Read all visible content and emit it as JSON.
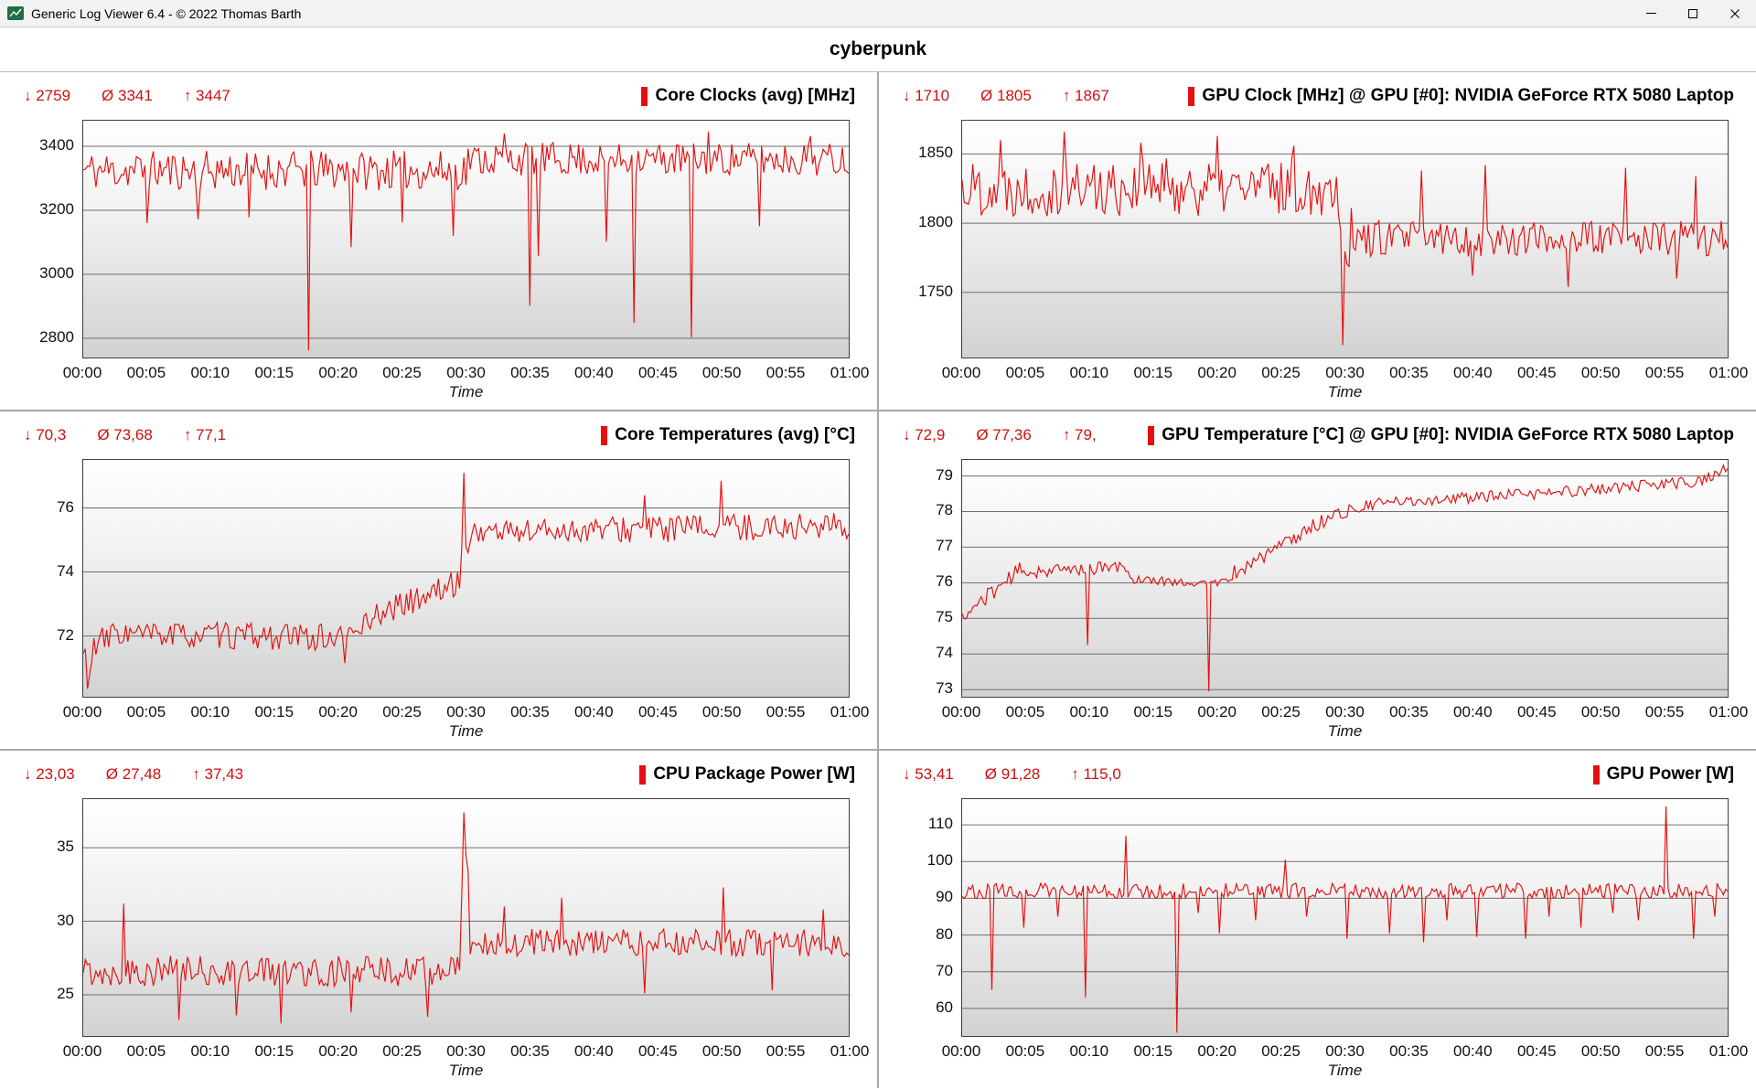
{
  "window": {
    "title": "Generic Log Viewer 6.4 - © 2022 Thomas Barth",
    "controls": [
      "minimize",
      "maximize",
      "close"
    ]
  },
  "header": {
    "title": "cyberpunk"
  },
  "chart_data": [
    {
      "type": "line",
      "title": "Core Clocks (avg) [MHz]",
      "stats": {
        "min": "↓ 2759",
        "avg": "Ø 3341",
        "max": "↑ 3447"
      },
      "color": "#e60f0f",
      "xlabel": "Time",
      "x_ticks": [
        "00:00",
        "00:05",
        "00:10",
        "00:15",
        "00:20",
        "00:25",
        "00:30",
        "00:35",
        "00:40",
        "00:45",
        "00:50",
        "00:55",
        "01:00"
      ],
      "y_ticks": [
        2800,
        3000,
        3200,
        3400
      ],
      "ylim": [
        2740,
        3480
      ],
      "series": {
        "seed": 11,
        "segments": [
          [
            0,
            30,
            3325,
            3325,
            62
          ],
          [
            30,
            60,
            3360,
            3360,
            52
          ]
        ],
        "spikes": [
          [
            5,
            3160
          ],
          [
            9,
            3172
          ],
          [
            13,
            3178
          ],
          [
            17.6,
            2762
          ],
          [
            21,
            3085
          ],
          [
            25,
            3162
          ],
          [
            29,
            3120
          ],
          [
            33,
            3440
          ],
          [
            35,
            2902
          ],
          [
            35.6,
            3058
          ],
          [
            41,
            3102
          ],
          [
            43.2,
            2848
          ],
          [
            47.6,
            2803
          ],
          [
            49,
            3445
          ],
          [
            53,
            3150
          ],
          [
            57,
            3432
          ]
        ]
      }
    },
    {
      "type": "line",
      "title": "GPU Clock [MHz] @ GPU [#0]: NVIDIA GeForce RTX 5080 Laptop",
      "stats": {
        "min": "↓ 1710",
        "avg": "Ø 1805",
        "max": "↑ 1867"
      },
      "color": "#e60f0f",
      "xlabel": "Time",
      "x_ticks": [
        "00:00",
        "00:05",
        "00:10",
        "00:15",
        "00:20",
        "00:25",
        "00:30",
        "00:35",
        "00:40",
        "00:45",
        "00:50",
        "00:55",
        "01:00"
      ],
      "y_ticks": [
        1750,
        1800,
        1850
      ],
      "ylim": [
        1703,
        1874
      ],
      "series": {
        "seed": 22,
        "segments": [
          [
            0,
            29.5,
            1826,
            1826,
            21
          ],
          [
            29.5,
            30.5,
            1802,
            1790,
            28
          ],
          [
            30.5,
            60,
            1789,
            1789,
            13
          ]
        ],
        "spikes": [
          [
            3,
            1860
          ],
          [
            8,
            1866
          ],
          [
            14,
            1858
          ],
          [
            20,
            1863
          ],
          [
            26,
            1856
          ],
          [
            29.9,
            1712
          ],
          [
            36,
            1838
          ],
          [
            40,
            1762
          ],
          [
            41,
            1842
          ],
          [
            47.5,
            1754
          ],
          [
            52,
            1840
          ],
          [
            56,
            1760
          ],
          [
            57.5,
            1834
          ]
        ]
      }
    },
    {
      "type": "line",
      "title": "Core Temperatures (avg) [°C]",
      "stats": {
        "min": "↓ 70,3",
        "avg": "Ø 73,68",
        "max": "↑ 77,1"
      },
      "color": "#e60f0f",
      "xlabel": "Time",
      "x_ticks": [
        "00:00",
        "00:05",
        "00:10",
        "00:15",
        "00:20",
        "00:25",
        "00:30",
        "00:35",
        "00:40",
        "00:45",
        "00:50",
        "00:55",
        "01:00"
      ],
      "y_ticks": [
        72,
        74,
        76
      ],
      "ylim": [
        70.1,
        77.5
      ],
      "series": {
        "seed": 33,
        "segments": [
          [
            0,
            0.8,
            71.4,
            71.2,
            0.5
          ],
          [
            0.8,
            3,
            71.6,
            72.2,
            0.5
          ],
          [
            3,
            19,
            72.05,
            71.95,
            0.42
          ],
          [
            19,
            22,
            71.85,
            72.3,
            0.35
          ],
          [
            22,
            29.6,
            72.5,
            73.7,
            0.4
          ],
          [
            29.6,
            30.4,
            74.3,
            75.0,
            0.7
          ],
          [
            30.4,
            60,
            75.25,
            75.45,
            0.42
          ]
        ],
        "spikes": [
          [
            0.4,
            70.35
          ],
          [
            20.5,
            71.15
          ],
          [
            29.9,
            77.1
          ],
          [
            44,
            76.4
          ],
          [
            50,
            76.85
          ]
        ]
      }
    },
    {
      "type": "line",
      "title": "GPU Temperature [°C] @ GPU [#0]: NVIDIA GeForce RTX 5080 Laptop",
      "stats": {
        "min": "↓ 72,9",
        "avg": "Ø 77,36",
        "max": "↑ 79,"
      },
      "color": "#e60f0f",
      "xlabel": "Time",
      "x_ticks": [
        "00:00",
        "00:05",
        "00:10",
        "00:15",
        "00:20",
        "00:25",
        "00:30",
        "00:35",
        "00:40",
        "00:45",
        "00:50",
        "00:55",
        "01:00"
      ],
      "y_ticks": [
        73,
        74,
        75,
        76,
        77,
        78,
        79
      ],
      "ylim": [
        72.8,
        79.45
      ],
      "series": {
        "seed": 44,
        "segments": [
          [
            0,
            0.8,
            75.05,
            75.15,
            0.12
          ],
          [
            0.8,
            4.5,
            75.3,
            76.35,
            0.22
          ],
          [
            4.5,
            13,
            76.3,
            76.45,
            0.18
          ],
          [
            13,
            18.5,
            76.1,
            76.0,
            0.13
          ],
          [
            18.5,
            21,
            75.95,
            76.05,
            0.12
          ],
          [
            21,
            29,
            76.2,
            77.9,
            0.22
          ],
          [
            29,
            33,
            77.9,
            78.25,
            0.18
          ],
          [
            33,
            45,
            78.25,
            78.5,
            0.16
          ],
          [
            45,
            58,
            78.5,
            78.85,
            0.16
          ],
          [
            58,
            60,
            78.9,
            79.15,
            0.14
          ]
        ],
        "spikes": [
          [
            9.9,
            74.25
          ],
          [
            19.4,
            72.95
          ],
          [
            59.7,
            79.3
          ]
        ]
      }
    },
    {
      "type": "line",
      "title": "CPU Package Power [W]",
      "stats": {
        "min": "↓ 23,03",
        "avg": "Ø 27,48",
        "max": "↑ 37,43"
      },
      "color": "#e60f0f",
      "xlabel": "Time",
      "x_ticks": [
        "00:00",
        "00:05",
        "00:10",
        "00:15",
        "00:20",
        "00:25",
        "00:30",
        "00:35",
        "00:40",
        "00:45",
        "00:50",
        "00:55",
        "01:00"
      ],
      "y_ticks": [
        25,
        30,
        35
      ],
      "ylim": [
        22.2,
        38.3
      ],
      "series": {
        "seed": 55,
        "segments": [
          [
            0,
            29.6,
            26.6,
            26.6,
            1.05
          ],
          [
            29.6,
            30.2,
            30,
            34,
            2
          ],
          [
            30.2,
            60,
            28.55,
            28.55,
            0.95
          ]
        ],
        "spikes": [
          [
            3.1,
            31.2
          ],
          [
            7.5,
            23.3
          ],
          [
            12,
            23.6
          ],
          [
            15.5,
            23.05
          ],
          [
            21,
            23.8
          ],
          [
            27,
            23.5
          ],
          [
            29.9,
            37.4
          ],
          [
            33,
            31
          ],
          [
            37.5,
            31.6
          ],
          [
            44,
            25.1
          ],
          [
            50.2,
            32.3
          ],
          [
            54,
            25.3
          ],
          [
            58,
            30.8
          ]
        ]
      }
    },
    {
      "type": "line",
      "title": "GPU Power [W]",
      "stats": {
        "min": "↓ 53,41",
        "avg": "Ø 91,28",
        "max": "↑ 115,0"
      },
      "color": "#e60f0f",
      "xlabel": "Time",
      "x_ticks": [
        "00:00",
        "00:05",
        "00:10",
        "00:15",
        "00:20",
        "00:25",
        "00:30",
        "00:35",
        "00:40",
        "00:45",
        "00:50",
        "00:55",
        "01:00"
      ],
      "y_ticks": [
        60,
        70,
        80,
        90,
        100,
        110
      ],
      "ylim": [
        52.5,
        117
      ],
      "series": {
        "seed": 66,
        "segments": [
          [
            0,
            60,
            92,
            92,
            2.1
          ]
        ],
        "spikes": [
          [
            2.3,
            65
          ],
          [
            4.8,
            82
          ],
          [
            7.5,
            85
          ],
          [
            9.7,
            63
          ],
          [
            12.8,
            107
          ],
          [
            16.8,
            53.4
          ],
          [
            18.5,
            86
          ],
          [
            20.2,
            80.5
          ],
          [
            23,
            84
          ],
          [
            25.3,
            100.5
          ],
          [
            27,
            85
          ],
          [
            30.2,
            79
          ],
          [
            33.5,
            80.5
          ],
          [
            36.2,
            78
          ],
          [
            38,
            84
          ],
          [
            40.3,
            79.5
          ],
          [
            44.2,
            79
          ],
          [
            46,
            85
          ],
          [
            48.5,
            82
          ],
          [
            51,
            86
          ],
          [
            53,
            84
          ],
          [
            55.2,
            115
          ],
          [
            57.3,
            79
          ],
          [
            59,
            85
          ]
        ]
      }
    }
  ]
}
